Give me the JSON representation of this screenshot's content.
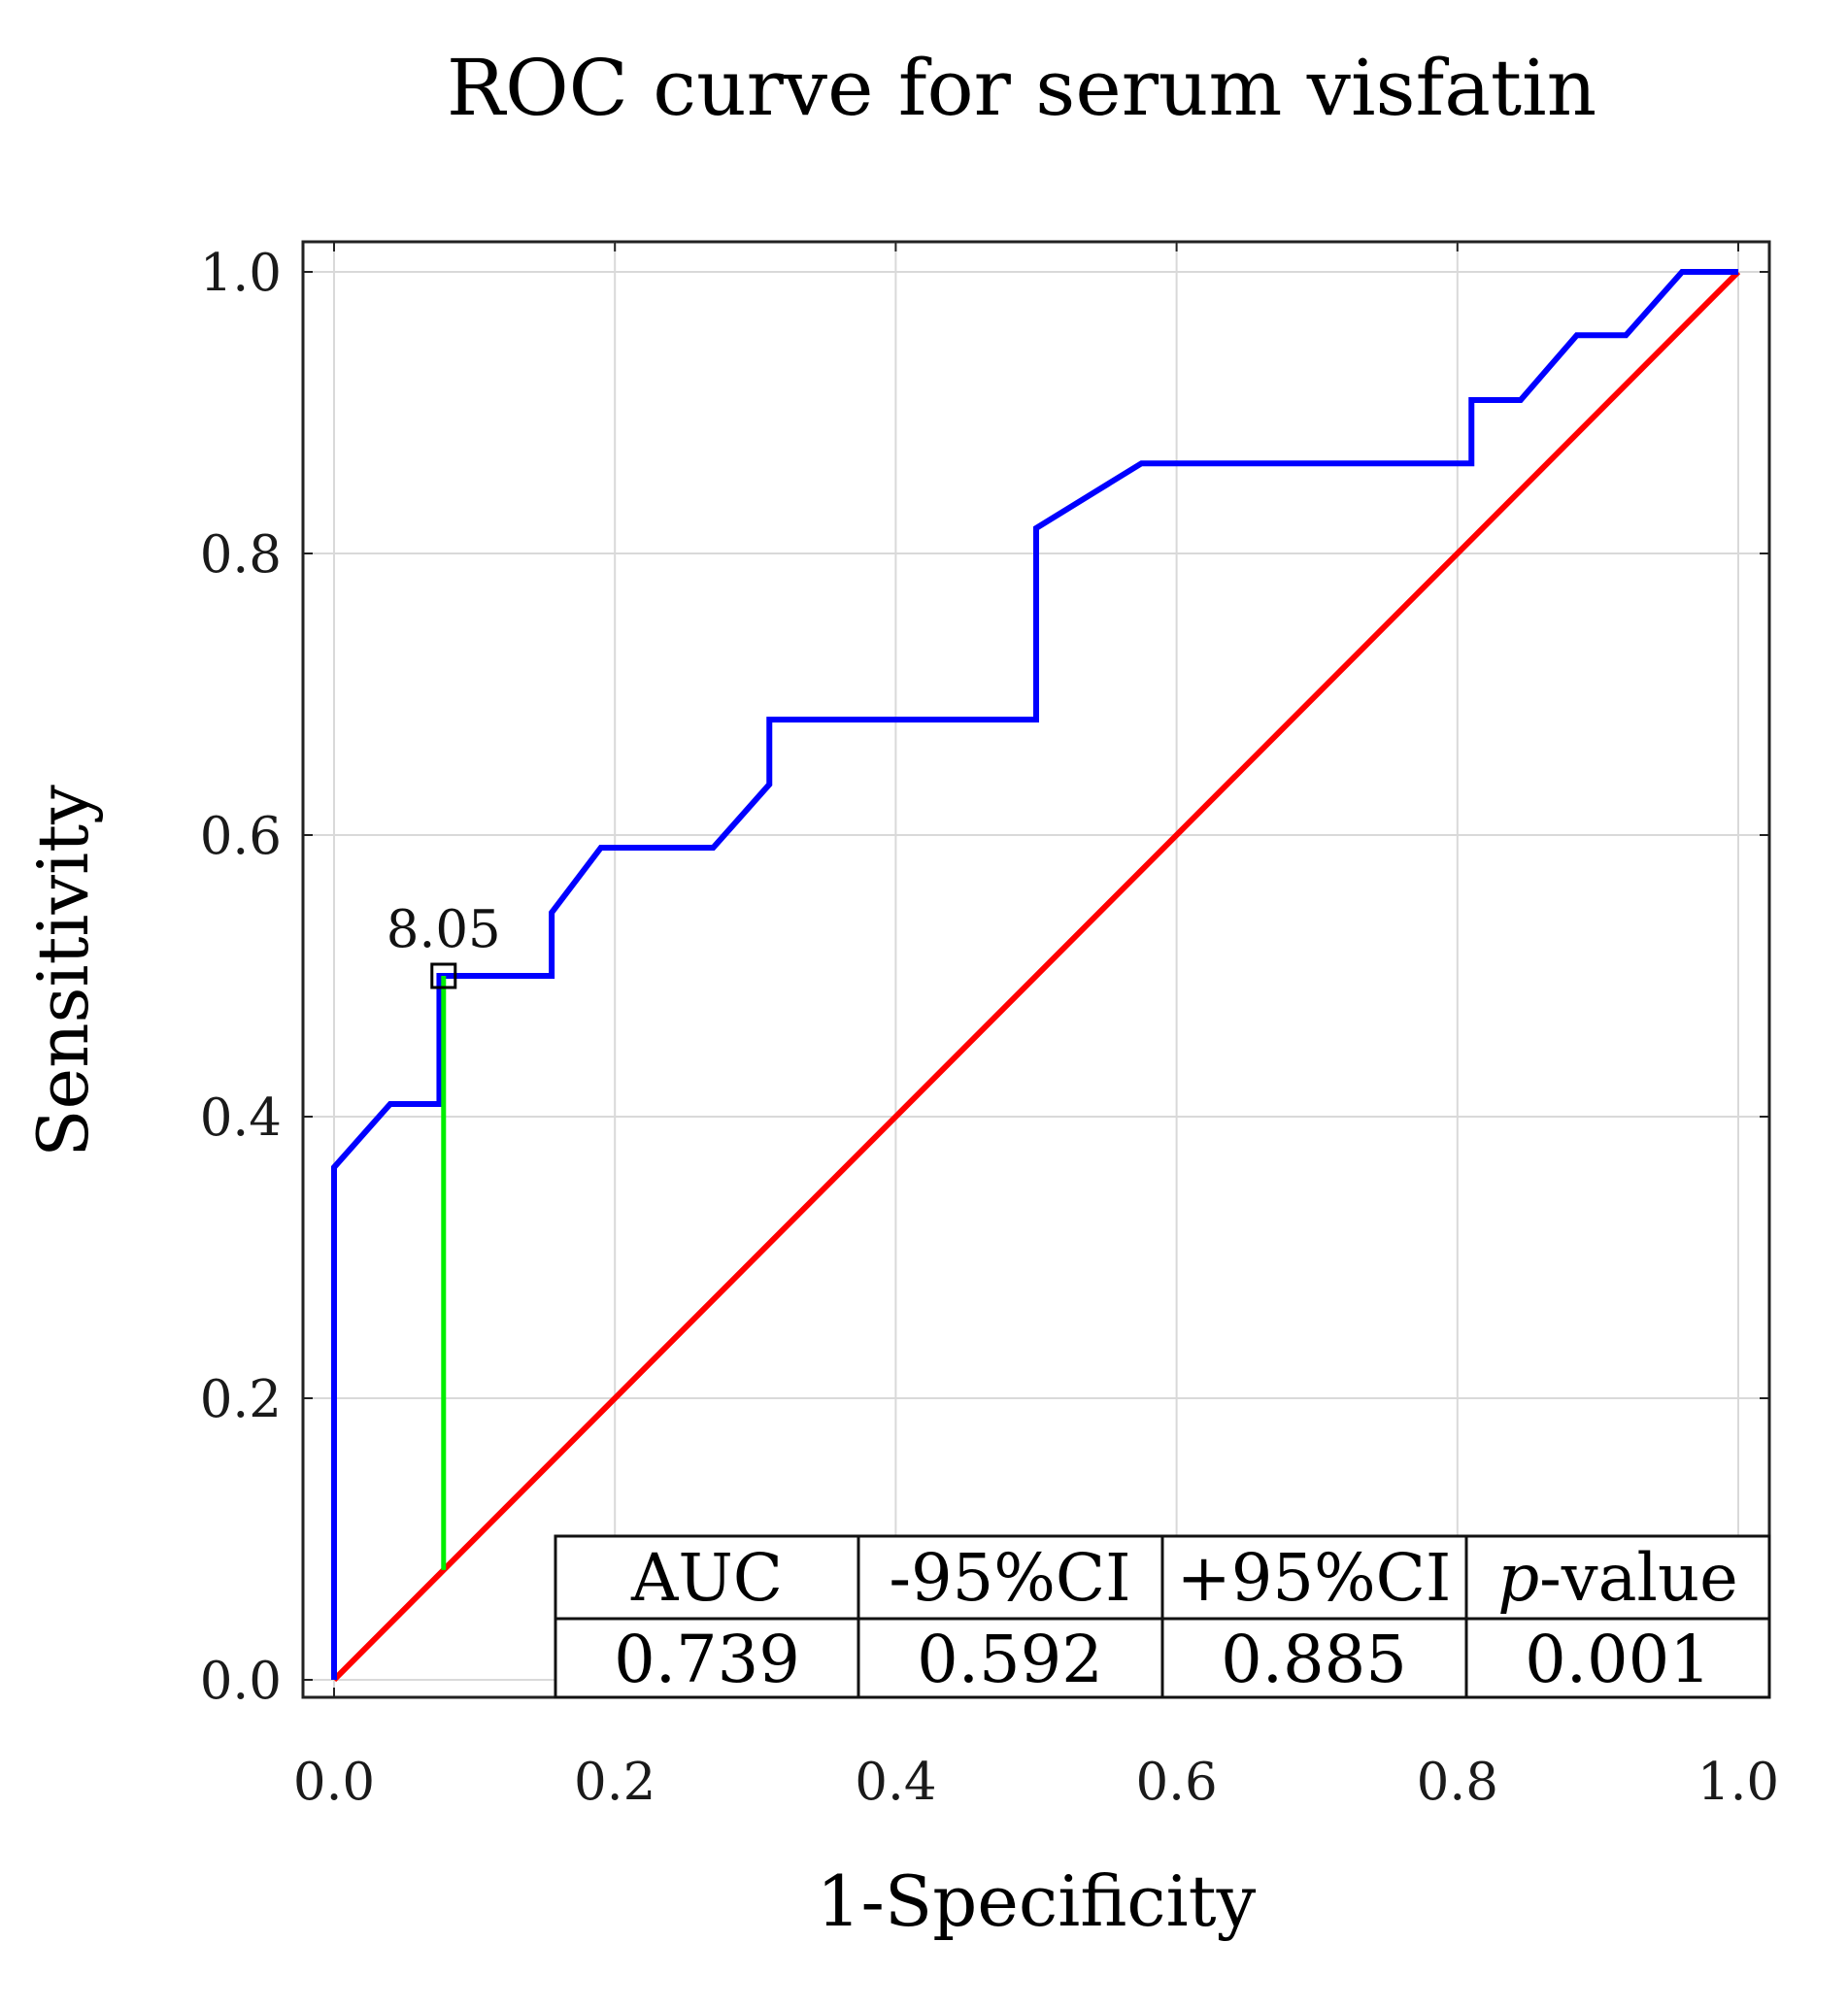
{
  "chart_data": {
    "type": "line",
    "title": "ROC curve for serum visfatin",
    "xlabel": "1-Specificity",
    "ylabel": "Sensitivity",
    "xlim": [
      0.0,
      1.0
    ],
    "ylim": [
      0.0,
      1.0
    ],
    "grid": true,
    "x_ticks": [
      "0.0",
      "0.2",
      "0.4",
      "0.6",
      "0.8",
      "1.0"
    ],
    "y_ticks": [
      "0.0",
      "0.2",
      "0.4",
      "0.6",
      "0.8",
      "1.0"
    ],
    "series": [
      {
        "name": "ROC curve",
        "color": "#0000ff",
        "x": [
          0.0,
          0.0,
          0.04,
          0.075,
          0.075,
          0.155,
          0.155,
          0.19,
          0.27,
          0.31,
          0.31,
          0.5,
          0.5,
          0.575,
          0.81,
          0.81,
          0.845,
          0.885,
          0.92,
          0.96,
          1.0
        ],
        "y": [
          0.0,
          0.364,
          0.409,
          0.409,
          0.5,
          0.5,
          0.545,
          0.591,
          0.591,
          0.636,
          0.682,
          0.682,
          0.818,
          0.864,
          0.864,
          0.909,
          0.909,
          0.955,
          0.955,
          1.0,
          1.0
        ]
      },
      {
        "name": "Reference line",
        "color": "#ff0000",
        "x": [
          0.0,
          1.0
        ],
        "y": [
          0.0,
          1.0
        ]
      }
    ],
    "cutoff": {
      "label": "8.05",
      "x": 0.078,
      "y": 0.5,
      "marker_color": "#000000",
      "youden_line_color": "#00ee00",
      "youden_y_low": 0.078
    },
    "stats_table": {
      "headers": [
        "AUC",
        "-95%CI",
        "+95%CI",
        "p-value"
      ],
      "header_italic_prefix": "p",
      "header_suffix": "-value",
      "values": [
        "0.739",
        "0.592",
        "0.885",
        "0.001"
      ]
    }
  }
}
